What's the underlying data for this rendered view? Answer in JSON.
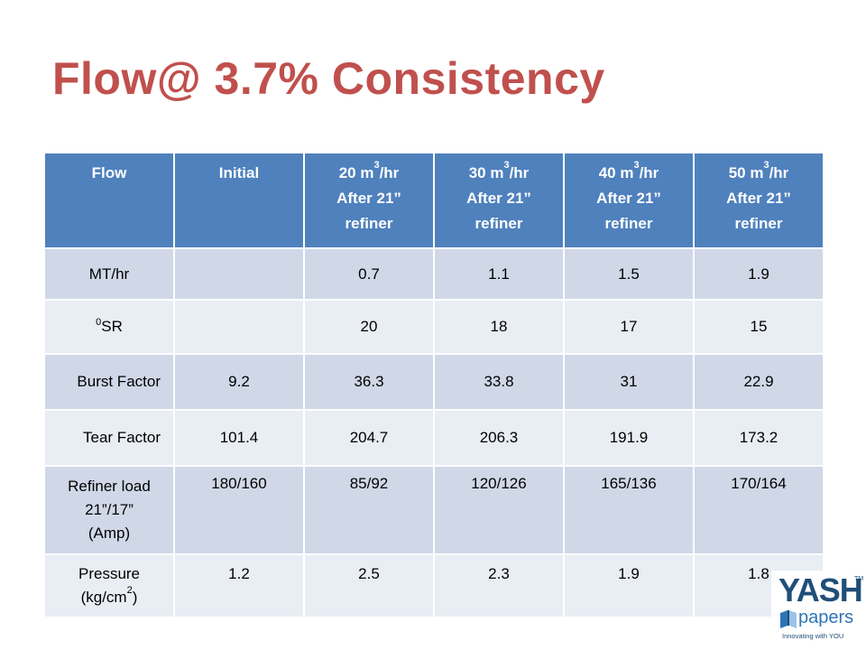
{
  "title": "Flow@ 3.7% Consistency",
  "table": {
    "headers": [
      {
        "l1": "Flow"
      },
      {
        "l1": "Initial"
      },
      {
        "l1": "20 m",
        "sup": "3",
        "l1b": "/hr",
        "l2": "After 21”",
        "l3": "refiner"
      },
      {
        "l1": "30 m",
        "sup": "3",
        "l1b": "/hr",
        "l2": "After 21”",
        "l3": "refiner"
      },
      {
        "l1": "40 m",
        "sup": "3",
        "l1b": "/hr",
        "l2": "After 21”",
        "l3": "refiner"
      },
      {
        "l1": "50 m",
        "sup": "3",
        "l1b": "/hr",
        "l2": "After 21”",
        "l3": "refiner"
      }
    ],
    "rows": [
      {
        "label": "MT/hr",
        "values": [
          "",
          "0.7",
          "1.1",
          "1.5",
          "1.9"
        ]
      },
      {
        "label_sup": "0",
        "label": "SR",
        "values": [
          "",
          "20",
          "18",
          "17",
          "15"
        ]
      },
      {
        "label": "Burst Factor",
        "values": [
          "9.2",
          "36.3",
          "33.8",
          "31",
          "22.9"
        ]
      },
      {
        "label": "Tear Factor",
        "values": [
          "101.4",
          "204.7",
          "206.3",
          "191.9",
          "173.2"
        ]
      },
      {
        "label_l1": "Refiner load",
        "label_l2": "21”/17”",
        "label_l3": "(Amp)",
        "values": [
          "180/160",
          "85/92",
          "120/126",
          "165/136",
          "170/164"
        ]
      },
      {
        "label_l1": "Pressure",
        "label_l2": "(kg/cm",
        "label_sup": "2",
        "label_l2b": ")",
        "values": [
          "1.2",
          "2.5",
          "2.3",
          "1.9",
          "1.8"
        ]
      }
    ]
  },
  "logo": {
    "name": "YASH",
    "tm": "TM",
    "sub": "papers",
    "tagline": "Innovating with YOU"
  },
  "colors": {
    "title": "#c0504d",
    "header_bg": "#4f81bd",
    "row_dark": "#d0d8e8",
    "row_light": "#e9edf4",
    "logo": "#1f4e79"
  }
}
